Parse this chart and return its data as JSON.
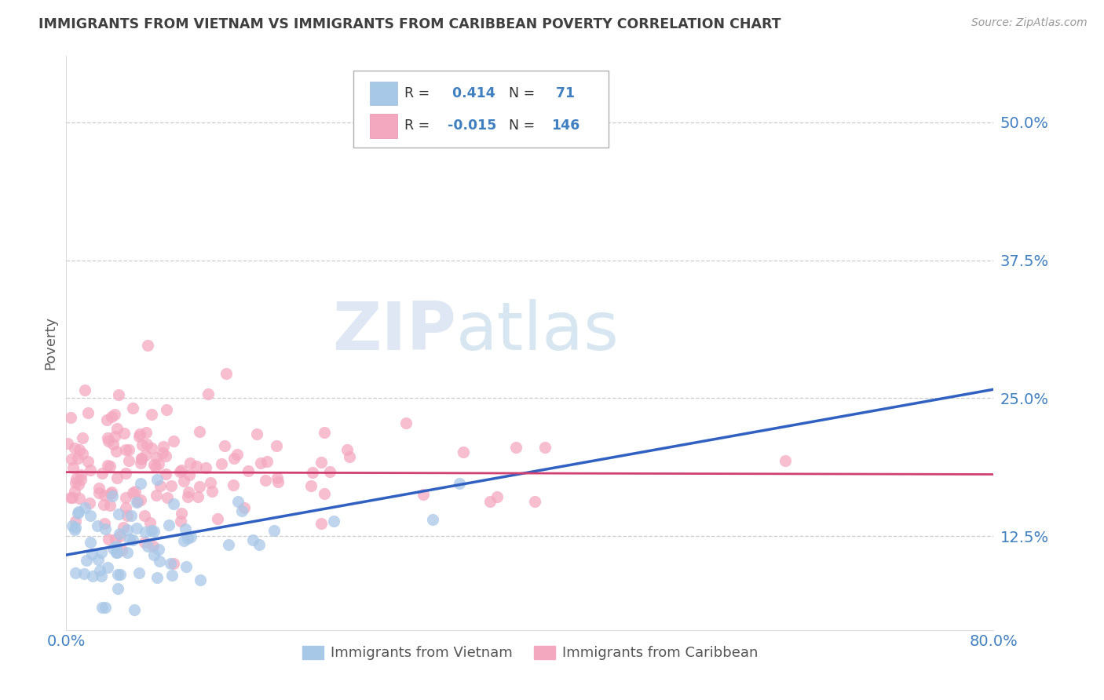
{
  "title": "IMMIGRANTS FROM VIETNAM VS IMMIGRANTS FROM CARIBBEAN POVERTY CORRELATION CHART",
  "source": "Source: ZipAtlas.com",
  "ylabel": "Poverty",
  "color_vietnam": "#a8c8e8",
  "color_caribbean": "#f4a8c0",
  "line_color_vietnam": "#3060c0",
  "line_color_caribbean": "#d04070",
  "background_color": "#ffffff",
  "grid_color": "#c8c8c8",
  "title_color": "#404040",
  "tick_color": "#4080c0",
  "legend_r_vietnam": " 0.414",
  "legend_n_vietnam": " 71",
  "legend_r_caribbean": "-0.015",
  "legend_n_caribbean": "146",
  "watermark_zip": "ZIP",
  "watermark_atlas": "atlas",
  "xlim": [
    0.0,
    0.8
  ],
  "ylim": [
    0.04,
    0.56
  ],
  "ytick_vals": [
    0.125,
    0.25,
    0.375,
    0.5
  ],
  "ytick_labels": [
    "12.5%",
    "25.0%",
    "37.5%",
    "50.0%"
  ],
  "xtick_vals": [
    0.0,
    0.8
  ],
  "xtick_labels": [
    "0.0%",
    "80.0%"
  ],
  "viet_line_x0": 0.0,
  "viet_line_y0": 0.108,
  "viet_line_x1": 0.8,
  "viet_line_y1": 0.258,
  "carib_line_x0": 0.0,
  "carib_line_y0": 0.183,
  "carib_line_x1": 0.8,
  "carib_line_y1": 0.181
}
